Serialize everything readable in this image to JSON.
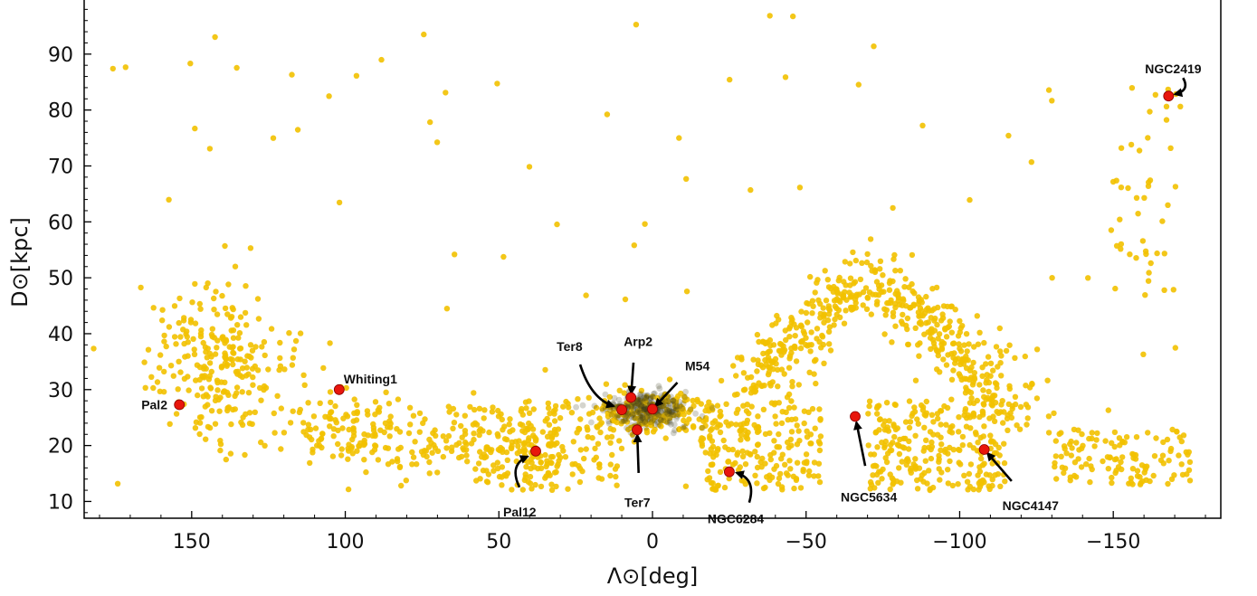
{
  "chart_data": {
    "type": "scatter",
    "xlabel": "Λ⊙[deg]",
    "ylabel": "D⊙[kpc]",
    "xlim": [
      185,
      -185
    ],
    "ylim": [
      7,
      100
    ],
    "x_ticks": [
      150,
      100,
      50,
      0,
      -50,
      -100,
      -150
    ],
    "x_tick_labels": [
      "150",
      "100",
      "50",
      "0",
      "−50",
      "−100",
      "−150"
    ],
    "y_ticks": [
      10,
      20,
      30,
      40,
      50,
      60,
      70,
      80,
      90
    ],
    "y_tick_labels": [
      "10",
      "20",
      "30",
      "40",
      "50",
      "60",
      "70",
      "80",
      "90"
    ],
    "grid": false,
    "point_color": "#f2c100",
    "density_color": "#3a3a1c",
    "highlight_color": "#e8160c",
    "stream_samples": 1700,
    "stream_density_regions": [
      {
        "x_center": 137,
        "x_width": 12,
        "y_center": 34,
        "y_width": 7
      },
      {
        "x_center": 82,
        "x_width": 18,
        "y_center": 21,
        "y_width": 3
      },
      {
        "x_center": 0,
        "x_width": 10,
        "y_center": 26,
        "y_width": 2
      },
      {
        "x_center": -45,
        "x_width": 10,
        "y_center": 40,
        "y_width": 6
      },
      {
        "x_center": -95,
        "x_width": 12,
        "y_center": 35,
        "y_width": 8
      },
      {
        "x_center": -25,
        "x_width": 12,
        "y_center": 19,
        "y_width": 4
      },
      {
        "x_center": -95,
        "x_width": 15,
        "y_center": 20,
        "y_width": 4
      }
    ],
    "clusters": [
      {
        "name": "Pal2",
        "x": 154,
        "y": 27.3
      },
      {
        "name": "Whiting1",
        "x": 102,
        "y": 30.0
      },
      {
        "name": "Pal12",
        "x": 38,
        "y": 19.0
      },
      {
        "name": "Ter8",
        "x": 10,
        "y": 26.4
      },
      {
        "name": "Arp2",
        "x": 7,
        "y": 28.6
      },
      {
        "name": "M54",
        "x": 0,
        "y": 26.5
      },
      {
        "name": "Ter7",
        "x": 5,
        "y": 22.8
      },
      {
        "name": "NGC6284",
        "x": -25,
        "y": 15.3
      },
      {
        "name": "NGC5634",
        "x": -66,
        "y": 25.2
      },
      {
        "name": "NGC4147",
        "x": -108,
        "y": 19.3
      },
      {
        "name": "NGC2419",
        "x": -168,
        "y": 82.5
      }
    ]
  }
}
